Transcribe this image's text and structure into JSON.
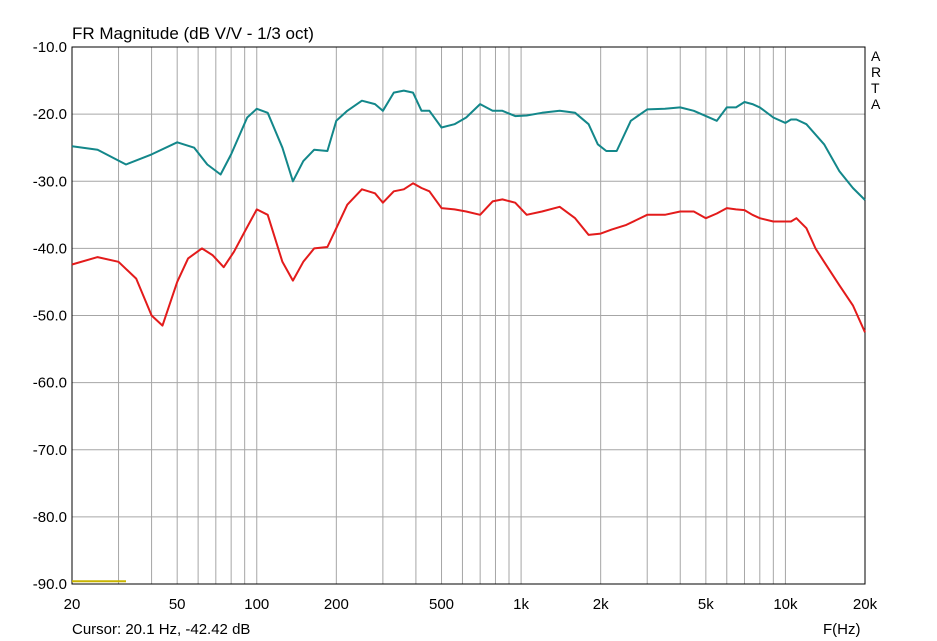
{
  "chart_data": {
    "type": "line",
    "title": "FR Magnitude (dB V/V - 1/3 oct)",
    "xlabel": "F(Hz)",
    "ylabel": "",
    "x_scale": "log",
    "xlim": [
      20,
      20000
    ],
    "ylim": [
      -90,
      -10
    ],
    "grid": true,
    "y_ticks": [
      -10,
      -20,
      -30,
      -40,
      -50,
      -60,
      -70,
      -80,
      -90
    ],
    "y_tick_labels": [
      "-10.0",
      "-20.0",
      "-30.0",
      "-40.0",
      "-50.0",
      "-60.0",
      "-70.0",
      "-80.0",
      "-90.0"
    ],
    "x_ticks": [
      20,
      50,
      100,
      200,
      500,
      1000,
      2000,
      5000,
      10000,
      20000
    ],
    "x_tick_labels": [
      "20",
      "50",
      "100",
      "200",
      "500",
      "1k",
      "2k",
      "5k",
      "10k",
      "20k"
    ],
    "series": [
      {
        "color": "#13878a",
        "x": [
          20,
          25,
          32,
          40,
          50,
          58,
          65,
          73,
          80,
          92,
          100,
          110,
          125,
          137,
          150,
          165,
          185,
          200,
          220,
          250,
          280,
          300,
          330,
          360,
          390,
          420,
          450,
          500,
          560,
          620,
          700,
          780,
          850,
          950,
          1050,
          1200,
          1400,
          1600,
          1800,
          1950,
          2100,
          2300,
          2600,
          3000,
          3500,
          4000,
          4500,
          5000,
          5500,
          6000,
          6500,
          7000,
          7500,
          8000,
          9000,
          10000,
          10500,
          11000,
          12000,
          14000,
          16000,
          18000,
          20000
        ],
        "values": [
          -24.8,
          -25.3,
          -27.5,
          -26.0,
          -24.2,
          -25.0,
          -27.5,
          -29.0,
          -26.0,
          -20.5,
          -19.2,
          -19.8,
          -25.0,
          -30.0,
          -27.0,
          -25.3,
          -25.5,
          -21.0,
          -19.5,
          -18.0,
          -18.5,
          -19.5,
          -16.8,
          -16.5,
          -16.8,
          -19.5,
          -19.5,
          -22.0,
          -21.5,
          -20.5,
          -18.5,
          -19.5,
          -19.5,
          -20.3,
          -20.2,
          -19.8,
          -19.5,
          -19.8,
          -21.5,
          -24.5,
          -25.5,
          -25.5,
          -21.0,
          -19.3,
          -19.2,
          -19.0,
          -19.5,
          -20.3,
          -21.0,
          -19.0,
          -19.0,
          -18.2,
          -18.5,
          -19.0,
          -20.5,
          -21.3,
          -20.8,
          -20.8,
          -21.5,
          -24.5,
          -28.5,
          -31.0,
          -32.8
        ]
      },
      {
        "color": "#e31b1b",
        "x": [
          20,
          25,
          30,
          35,
          40,
          44,
          50,
          55,
          62,
          68,
          75,
          82,
          90,
          100,
          110,
          125,
          137,
          150,
          165,
          185,
          200,
          220,
          250,
          280,
          300,
          330,
          360,
          390,
          420,
          450,
          500,
          560,
          620,
          700,
          780,
          850,
          950,
          1050,
          1200,
          1400,
          1600,
          1800,
          2000,
          2200,
          2500,
          3000,
          3500,
          4000,
          4500,
          5000,
          5500,
          6000,
          6500,
          7000,
          7500,
          8000,
          9000,
          10000,
          10500,
          11000,
          12000,
          13000,
          14000,
          16000,
          18000,
          20000
        ],
        "values": [
          -42.4,
          -41.3,
          -42.0,
          -44.5,
          -50.0,
          -51.5,
          -45.0,
          -41.5,
          -40.0,
          -41.0,
          -42.8,
          -40.5,
          -37.5,
          -34.2,
          -35.0,
          -42.0,
          -44.8,
          -42.0,
          -40.0,
          -39.8,
          -37.0,
          -33.5,
          -31.2,
          -31.8,
          -33.2,
          -31.5,
          -31.2,
          -30.3,
          -31.0,
          -31.5,
          -34.0,
          -34.2,
          -34.5,
          -35.0,
          -33.0,
          -32.7,
          -33.2,
          -35.0,
          -34.5,
          -33.8,
          -35.5,
          -38.0,
          -37.8,
          -37.2,
          -36.5,
          -35.0,
          -35.0,
          -34.5,
          -34.5,
          -35.5,
          -34.8,
          -34.0,
          -34.2,
          -34.3,
          -35.0,
          -35.5,
          -36.0,
          -36.0,
          -36.0,
          -35.5,
          -37.0,
          -40.0,
          -42.0,
          -45.5,
          -48.5,
          -52.5
        ]
      },
      {
        "color": "#c8b400",
        "x": [
          20,
          32
        ],
        "values": [
          -89.6,
          -89.6
        ]
      }
    ]
  },
  "side_label": [
    "A",
    "R",
    "T",
    "A"
  ],
  "status": {
    "cursor": "Cursor: 20.1 Hz, -42.42 dB",
    "axis_unit": "F(Hz)"
  }
}
